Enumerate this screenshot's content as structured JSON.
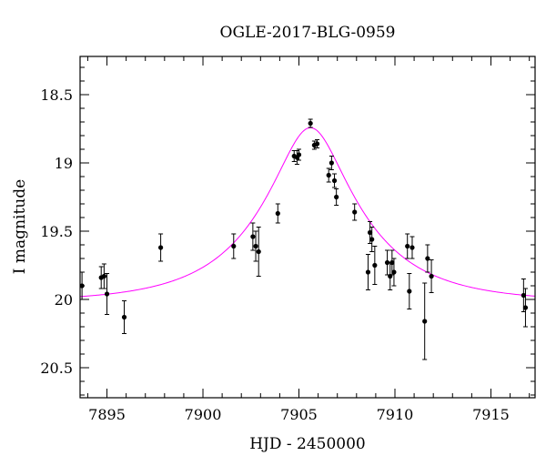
{
  "chart_data": {
    "type": "scatter",
    "title": "OGLE-2017-BLG-0959",
    "xlabel": "HJD - 2450000",
    "ylabel": "I magnitude",
    "xlim": [
      7893.6,
      7917.3
    ],
    "ylim": [
      20.72,
      18.22
    ],
    "y_inverted": true,
    "x_major_ticks": [
      7895,
      7900,
      7905,
      7910,
      7915
    ],
    "x_tick_labels": [
      "7895",
      "7900",
      "7905",
      "7910",
      "7915"
    ],
    "x_minor_step": 1,
    "y_major_ticks": [
      18.5,
      19,
      19.5,
      20,
      20.5
    ],
    "y_tick_labels": [
      "18.5",
      "19",
      "19.5",
      "20",
      "20.5"
    ],
    "y_minor_step": 0.1,
    "grid": false,
    "legend": "none",
    "series": [
      {
        "kind": "points-with-errorbars",
        "color": "#000000",
        "points": [
          {
            "x": 7893.7,
            "y": 19.9,
            "err": 0.1
          },
          {
            "x": 7894.7,
            "y": 19.84,
            "err": 0.08
          },
          {
            "x": 7894.85,
            "y": 19.83,
            "err": 0.09
          },
          {
            "x": 7895.0,
            "y": 19.96,
            "err": 0.15
          },
          {
            "x": 7895.9,
            "y": 20.13,
            "err": 0.12
          },
          {
            "x": 7897.8,
            "y": 19.62,
            "err": 0.1
          },
          {
            "x": 7901.6,
            "y": 19.61,
            "err": 0.09
          },
          {
            "x": 7902.6,
            "y": 19.54,
            "err": 0.1
          },
          {
            "x": 7902.75,
            "y": 19.61,
            "err": 0.11
          },
          {
            "x": 7902.9,
            "y": 19.65,
            "err": 0.18
          },
          {
            "x": 7903.9,
            "y": 19.37,
            "err": 0.07
          },
          {
            "x": 7904.75,
            "y": 18.95,
            "err": 0.04
          },
          {
            "x": 7904.9,
            "y": 18.96,
            "err": 0.05
          },
          {
            "x": 7905.0,
            "y": 18.94,
            "err": 0.04
          },
          {
            "x": 7905.6,
            "y": 18.71,
            "err": 0.03
          },
          {
            "x": 7905.8,
            "y": 18.87,
            "err": 0.03
          },
          {
            "x": 7905.95,
            "y": 18.86,
            "err": 0.03
          },
          {
            "x": 7906.55,
            "y": 19.09,
            "err": 0.05
          },
          {
            "x": 7906.7,
            "y": 19.0,
            "err": 0.05
          },
          {
            "x": 7906.85,
            "y": 19.13,
            "err": 0.05
          },
          {
            "x": 7906.95,
            "y": 19.25,
            "err": 0.06
          },
          {
            "x": 7907.9,
            "y": 19.36,
            "err": 0.06
          },
          {
            "x": 7908.6,
            "y": 19.8,
            "err": 0.13
          },
          {
            "x": 7908.7,
            "y": 19.51,
            "err": 0.08
          },
          {
            "x": 7908.8,
            "y": 19.56,
            "err": 0.09
          },
          {
            "x": 7908.95,
            "y": 19.75,
            "err": 0.14
          },
          {
            "x": 7909.6,
            "y": 19.73,
            "err": 0.09
          },
          {
            "x": 7909.75,
            "y": 19.83,
            "err": 0.1
          },
          {
            "x": 7909.85,
            "y": 19.73,
            "err": 0.09
          },
          {
            "x": 7909.95,
            "y": 19.8,
            "err": 0.1
          },
          {
            "x": 7910.65,
            "y": 19.61,
            "err": 0.09
          },
          {
            "x": 7910.75,
            "y": 19.94,
            "err": 0.13
          },
          {
            "x": 7910.9,
            "y": 19.62,
            "err": 0.08
          },
          {
            "x": 7911.55,
            "y": 20.16,
            "err": 0.28
          },
          {
            "x": 7911.7,
            "y": 19.7,
            "err": 0.1
          },
          {
            "x": 7911.9,
            "y": 19.83,
            "err": 0.12
          },
          {
            "x": 7916.7,
            "y": 19.97,
            "err": 0.12
          },
          {
            "x": 7916.8,
            "y": 20.06,
            "err": 0.14
          }
        ]
      },
      {
        "kind": "model-curve",
        "color": "#ff00ff",
        "model": {
          "baseline": 20.02,
          "t0": 7905.6,
          "u0": 0.32,
          "tE": 5.2
        }
      }
    ]
  }
}
